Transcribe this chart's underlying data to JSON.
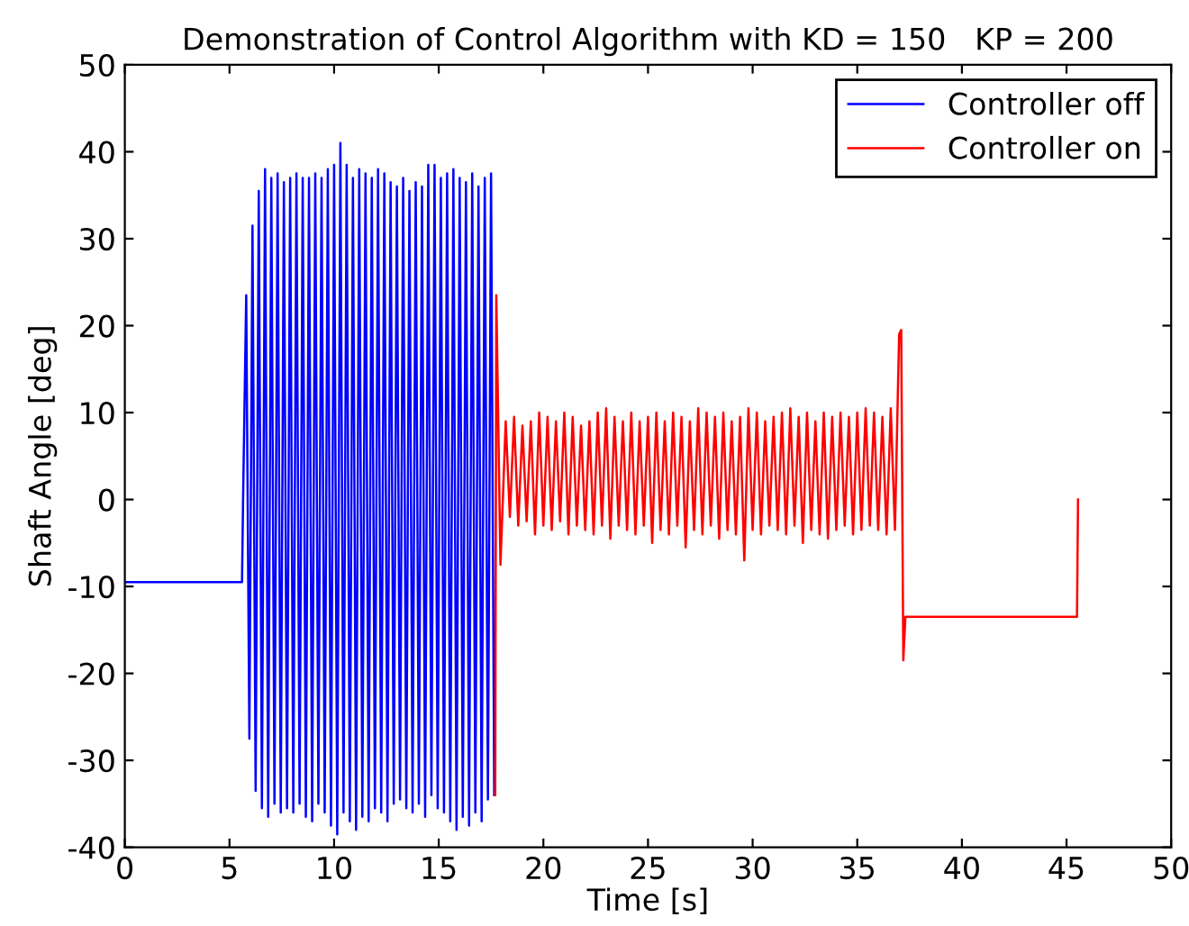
{
  "chart_data": {
    "type": "line",
    "title": "Demonstration of Control Algorithm with KD = 150   KP = 200",
    "xlabel": "Time [s]",
    "ylabel": "Shaft Angle [deg]",
    "xlim": [
      0,
      50
    ],
    "ylim": [
      -40,
      50
    ],
    "xticks": [
      0,
      5,
      10,
      15,
      20,
      25,
      30,
      35,
      40,
      45,
      50
    ],
    "yticks": [
      -40,
      -30,
      -20,
      -10,
      0,
      10,
      20,
      30,
      40,
      50
    ],
    "grid": false,
    "legend": "top right",
    "marker": "none",
    "line_style": "solid",
    "series": [
      {
        "name": "Controller off",
        "color": "#0000ff",
        "x": [
          0,
          5.6,
          5.65,
          5.8,
          5.95,
          6.1,
          6.25,
          6.4,
          6.55,
          6.7,
          6.85,
          7,
          7.15,
          7.3,
          7.45,
          7.6,
          7.75,
          7.9,
          8.05,
          8.2,
          8.35,
          8.5,
          8.65,
          8.8,
          8.95,
          9.1,
          9.25,
          9.4,
          9.55,
          9.7,
          9.85,
          10,
          10.15,
          10.3,
          10.45,
          10.6,
          10.75,
          10.9,
          11.05,
          11.2,
          11.35,
          11.5,
          11.65,
          11.8,
          11.95,
          12.1,
          12.25,
          12.4,
          12.55,
          12.7,
          12.85,
          13,
          13.15,
          13.3,
          13.45,
          13.6,
          13.75,
          13.9,
          14.05,
          14.2,
          14.35,
          14.5,
          14.65,
          14.8,
          14.95,
          15.1,
          15.25,
          15.4,
          15.55,
          15.7,
          15.85,
          16,
          16.15,
          16.3,
          16.45,
          16.6,
          16.75,
          16.9,
          17.05,
          17.2,
          17.35,
          17.5,
          17.65
        ],
        "values": [
          -9.5,
          -9.5,
          0,
          23.5,
          -27.5,
          31.5,
          -33.5,
          35.5,
          -35.5,
          38,
          -36.5,
          37,
          -35,
          37.5,
          -36,
          36.5,
          -35.5,
          37,
          -36,
          37.5,
          -35,
          37,
          -36.5,
          37,
          -37,
          37.5,
          -35,
          37,
          -36,
          38,
          -37.5,
          38.5,
          -38.5,
          41,
          -36,
          38.5,
          -37,
          37,
          -38,
          38,
          -36.5,
          37.5,
          -37,
          37,
          -35.5,
          38,
          -36,
          37.5,
          -37,
          36.5,
          -35,
          36,
          -34.5,
          37,
          -35.5,
          35.5,
          -36,
          36.5,
          -35,
          36,
          -36.5,
          38.5,
          -34,
          38.5,
          -35.5,
          37,
          -36,
          37.5,
          -37,
          38,
          -38,
          37,
          -36.5,
          36.5,
          -37.5,
          37.5,
          -36,
          36,
          -37,
          37,
          -34.5,
          37.5,
          -34
        ]
      },
      {
        "name": "Controller on",
        "color": "#ff0000",
        "x": [
          17.7,
          17.75,
          17.95,
          18.2,
          18.4,
          18.6,
          18.8,
          19,
          19.2,
          19.4,
          19.6,
          19.8,
          20,
          20.2,
          20.4,
          20.6,
          20.8,
          21,
          21.2,
          21.4,
          21.6,
          21.8,
          22,
          22.2,
          22.4,
          22.6,
          22.8,
          23,
          23.2,
          23.4,
          23.6,
          23.8,
          24,
          24.2,
          24.4,
          24.6,
          24.8,
          25,
          25.2,
          25.4,
          25.6,
          25.8,
          26,
          26.2,
          26.4,
          26.6,
          26.8,
          27,
          27.2,
          27.4,
          27.6,
          27.8,
          28,
          28.2,
          28.4,
          28.6,
          28.8,
          29,
          29.2,
          29.4,
          29.6,
          29.8,
          30,
          30.2,
          30.4,
          30.6,
          30.8,
          31,
          31.2,
          31.4,
          31.6,
          31.8,
          32,
          32.2,
          32.4,
          32.6,
          32.8,
          33,
          33.2,
          33.4,
          33.6,
          33.8,
          34,
          34.2,
          34.4,
          34.6,
          34.8,
          35,
          35.2,
          35.4,
          35.6,
          35.8,
          36,
          36.2,
          36.4,
          36.6,
          36.8,
          37,
          37.1,
          37.2,
          37.3,
          45.5,
          45.55
        ],
        "values": [
          -34,
          23.5,
          -7.5,
          9,
          -2,
          9.5,
          -3,
          8.5,
          -2.5,
          9,
          -4,
          10,
          -3,
          9.5,
          -3.5,
          9,
          -2.5,
          10,
          -4,
          9.5,
          -3,
          8.5,
          -3.5,
          9,
          -4,
          10,
          -3,
          10.5,
          -4.5,
          9.5,
          -3,
          9,
          -3.5,
          10,
          -4,
          9,
          -3,
          9.5,
          -5,
          10,
          -3.5,
          9,
          -4,
          10,
          -3,
          9.5,
          -5.5,
          9,
          -3.5,
          10.5,
          -4,
          10,
          -3,
          9.5,
          -4.5,
          10,
          -3.5,
          9,
          -4,
          9.5,
          -7,
          10.5,
          -3.5,
          10,
          -4,
          9,
          -3,
          9.5,
          -3.5,
          10,
          -4,
          10.5,
          -3,
          9.5,
          -5,
          10,
          -3.5,
          9,
          -4,
          10,
          -4.5,
          9.5,
          -3.5,
          10,
          -3,
          9.5,
          -4,
          10,
          -3.5,
          10.5,
          -3,
          10,
          -3.5,
          9.5,
          -4,
          10.5,
          -3.5,
          19,
          19.5,
          -18.5,
          -13.5,
          -13.5,
          0
        ]
      }
    ]
  }
}
